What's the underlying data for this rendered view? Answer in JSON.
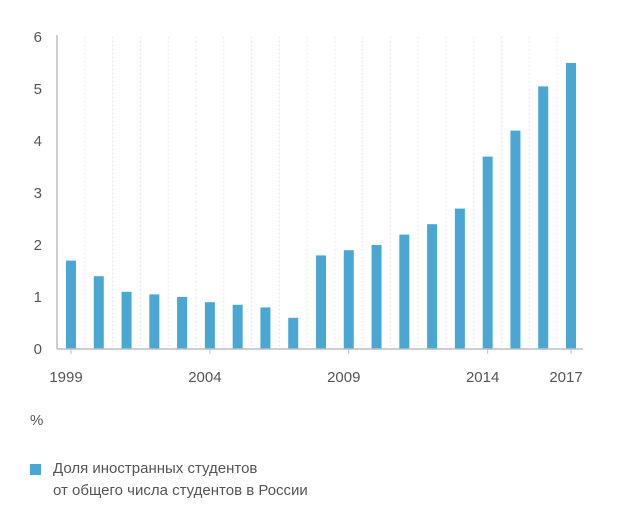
{
  "chart_data": {
    "type": "bar",
    "x": [
      1999,
      2000,
      2001,
      2002,
      2003,
      2004,
      2005,
      2006,
      2007,
      2008,
      2009,
      2010,
      2011,
      2012,
      2013,
      2014,
      2015,
      2016,
      2017
    ],
    "values": [
      1.7,
      1.4,
      1.1,
      1.05,
      1.0,
      0.9,
      0.85,
      0.8,
      0.6,
      1.8,
      1.9,
      2.0,
      2.2,
      2.4,
      2.7,
      3.7,
      4.2,
      5.05,
      5.5
    ],
    "x_tick_labels": [
      "1999",
      "2004",
      "2009",
      "2014",
      "2017"
    ],
    "y_ticks": [
      "0",
      "1",
      "2",
      "3",
      "4",
      "5",
      "6"
    ],
    "ylim": [
      0,
      6
    ],
    "grid": "vertical dotted",
    "bar_color": "#4aa7d3",
    "legend_position": "bottom-left"
  },
  "unit_label": "%",
  "legend": {
    "line1": "Доля иностранных студентов",
    "line2": "от общего числа студентов в России"
  }
}
